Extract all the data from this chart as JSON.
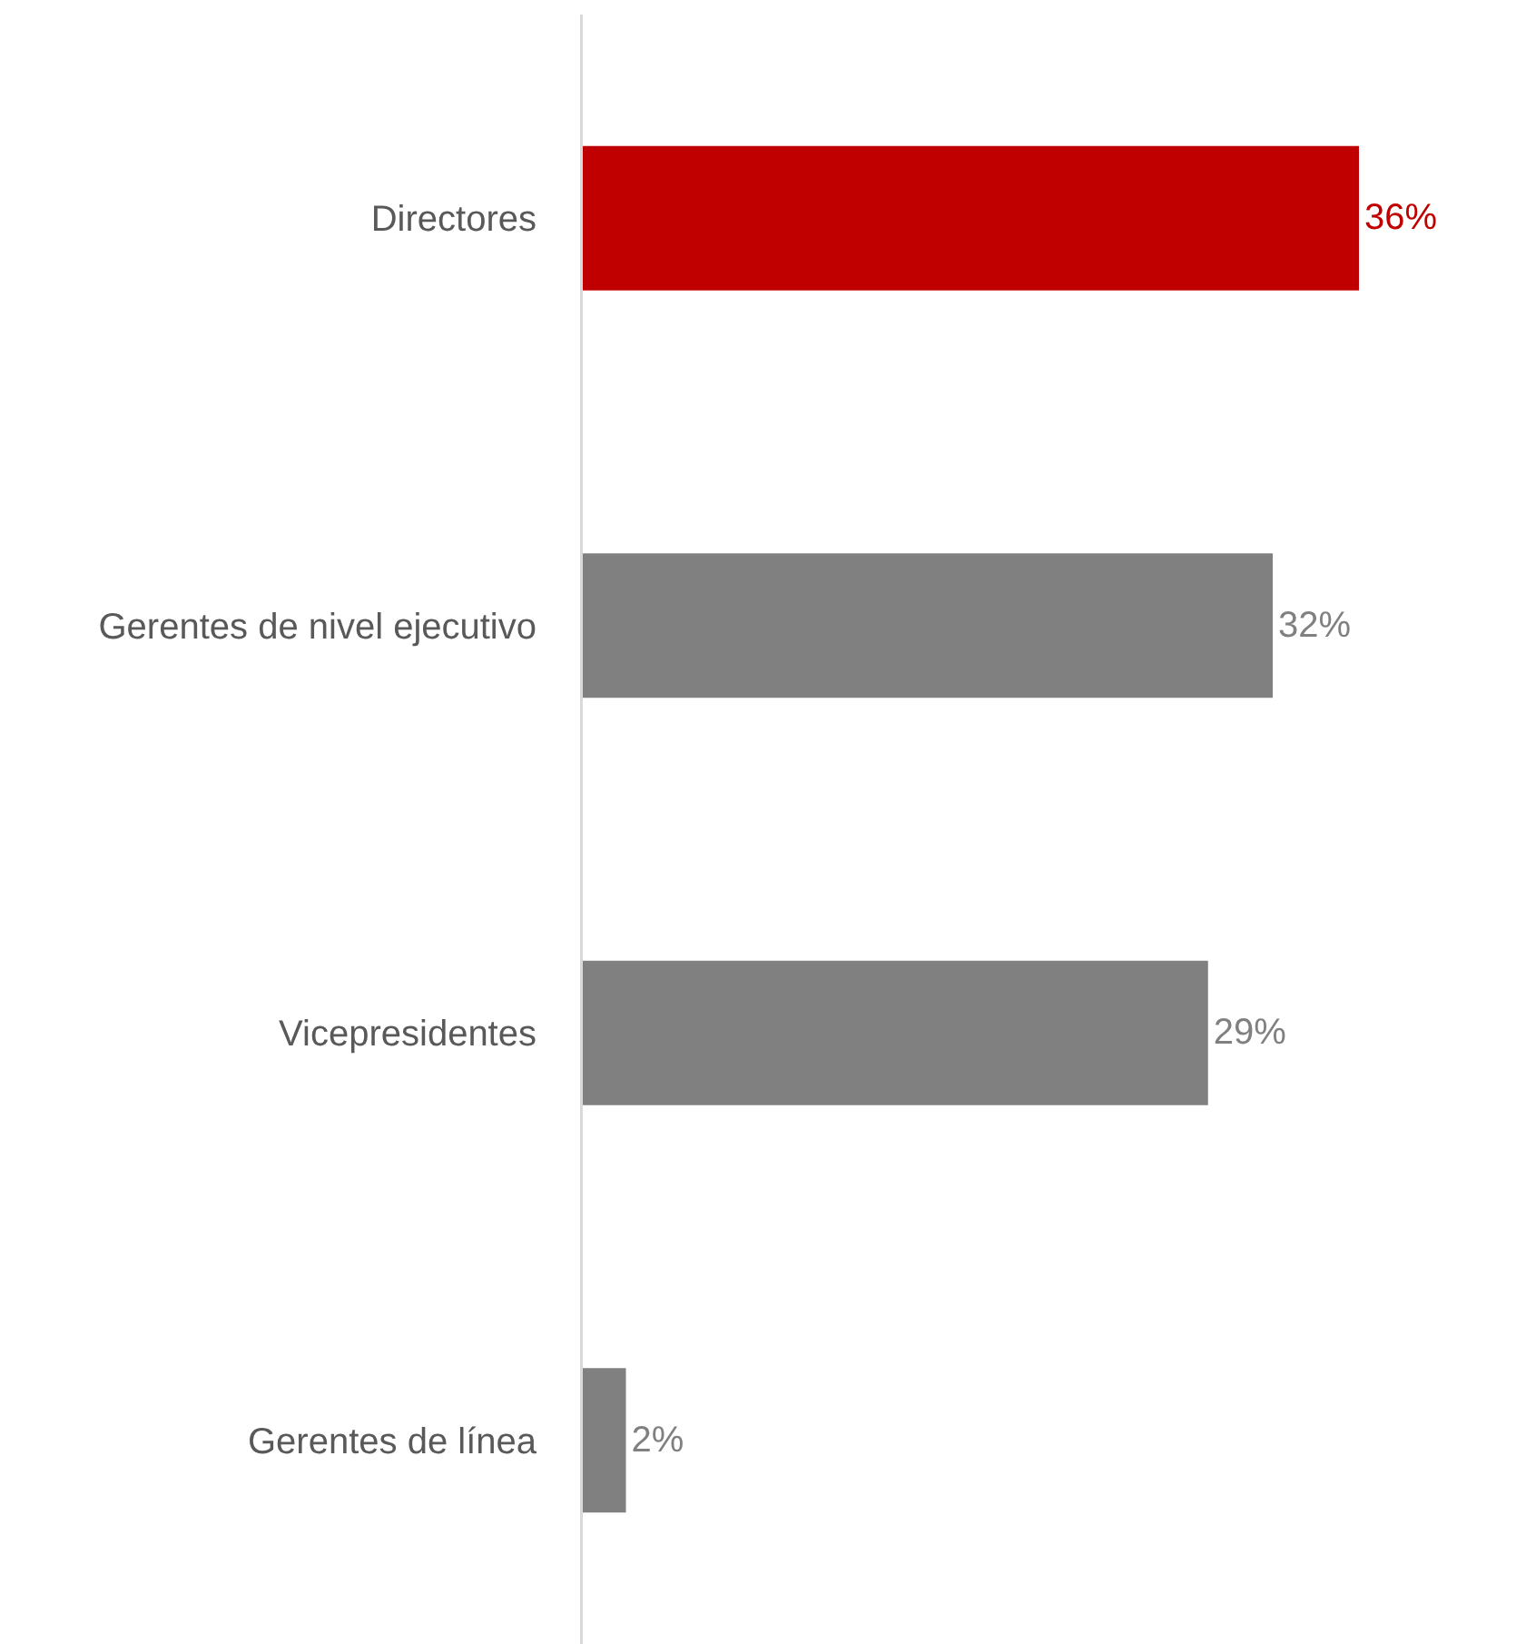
{
  "chart_data": {
    "type": "bar",
    "orientation": "horizontal",
    "categories": [
      "Directores",
      "Gerentes de nivel ejecutivo",
      "Vicepresidentes",
      "Gerentes de línea"
    ],
    "values": [
      36,
      32,
      29,
      2
    ],
    "colors": [
      "#c00000",
      "#808080",
      "#808080",
      "#808080"
    ],
    "value_labels": [
      "36%",
      "32%",
      "29%",
      "2%"
    ],
    "tick_labels": "y",
    "grid": false
  }
}
